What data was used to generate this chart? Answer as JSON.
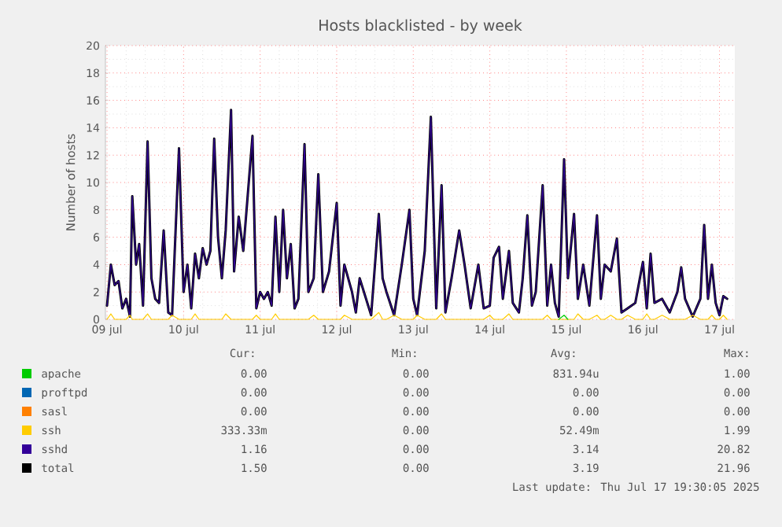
{
  "chart_data": {
    "type": "line",
    "title": "Hosts blacklisted - by week",
    "ylabel": "Number of hosts",
    "xlim": [
      "2025-07-08T23:30",
      "2025-07-17T04:48"
    ],
    "ylim": [
      0,
      20
    ],
    "xticks": [
      {
        "value": "2025-07-09",
        "label": "09 jul"
      },
      {
        "value": "2025-07-10",
        "label": "10 jul"
      },
      {
        "value": "2025-07-11",
        "label": "11 jul"
      },
      {
        "value": "2025-07-12",
        "label": "12 jul"
      },
      {
        "value": "2025-07-13",
        "label": "13 jul"
      },
      {
        "value": "2025-07-14",
        "label": "14 jul"
      },
      {
        "value": "2025-07-15",
        "label": "15 jul"
      },
      {
        "value": "2025-07-16",
        "label": "16 jul"
      },
      {
        "value": "2025-07-17",
        "label": "17 jul"
      }
    ],
    "yticks": [
      0,
      2,
      4,
      6,
      8,
      10,
      12,
      14,
      16,
      18,
      20
    ],
    "grid": true,
    "legend": "bottom",
    "marker": "none",
    "line_style": "solid",
    "x": [
      "2025-07-09T00:00",
      "2025-07-09T01:12",
      "2025-07-09T02:24",
      "2025-07-09T03:36",
      "2025-07-09T04:48",
      "2025-07-09T06:00",
      "2025-07-09T07:12",
      "2025-07-09T07:55",
      "2025-07-09T09:07",
      "2025-07-09T10:05",
      "2025-07-09T11:17",
      "2025-07-09T12:43",
      "2025-07-09T13:55",
      "2025-07-09T15:07",
      "2025-07-09T16:19",
      "2025-07-09T17:46",
      "2025-07-09T19:12",
      "2025-07-09T20:24",
      "2025-07-09T22:34",
      "2025-07-10T00:00",
      "2025-07-10T01:12",
      "2025-07-10T02:24",
      "2025-07-10T03:36",
      "2025-07-10T04:48",
      "2025-07-10T06:00",
      "2025-07-10T07:12",
      "2025-07-10T08:24",
      "2025-07-10T09:36",
      "2025-07-10T10:48",
      "2025-07-10T12:00",
      "2025-07-10T13:12",
      "2025-07-10T14:53",
      "2025-07-10T15:50",
      "2025-07-10T17:17",
      "2025-07-10T18:43",
      "2025-07-10T19:55",
      "2025-07-10T21:36",
      "2025-07-10T22:48",
      "2025-07-11T00:00",
      "2025-07-11T01:12",
      "2025-07-11T02:24",
      "2025-07-11T03:36",
      "2025-07-11T04:48",
      "2025-07-11T06:00",
      "2025-07-11T07:12",
      "2025-07-11T08:24",
      "2025-07-11T09:36",
      "2025-07-11T10:48",
      "2025-07-11T12:00",
      "2025-07-11T13:55",
      "2025-07-11T15:07",
      "2025-07-11T16:48",
      "2025-07-11T18:14",
      "2025-07-11T19:41",
      "2025-07-11T21:36",
      "2025-07-12T00:00",
      "2025-07-12T01:12",
      "2025-07-12T02:24",
      "2025-07-12T04:48",
      "2025-07-12T06:00",
      "2025-07-12T07:12",
      "2025-07-12T09:36",
      "2025-07-12T10:48",
      "2025-07-12T13:12",
      "2025-07-12T14:24",
      "2025-07-12T15:36",
      "2025-07-12T18:00",
      "2025-07-12T20:24",
      "2025-07-12T22:48",
      "2025-07-13T00:00",
      "2025-07-13T01:12",
      "2025-07-13T03:36",
      "2025-07-13T05:31",
      "2025-07-13T07:12",
      "2025-07-13T08:53",
      "2025-07-13T10:05",
      "2025-07-13T12:00",
      "2025-07-13T14:24",
      "2025-07-13T16:05",
      "2025-07-13T18:00",
      "2025-07-13T20:24",
      "2025-07-13T22:05",
      "2025-07-14T00:00",
      "2025-07-14T01:12",
      "2025-07-14T02:53",
      "2025-07-14T04:05",
      "2025-07-14T06:00",
      "2025-07-14T07:12",
      "2025-07-14T09:07",
      "2025-07-14T10:19",
      "2025-07-14T11:46",
      "2025-07-14T13:12",
      "2025-07-14T14:24",
      "2025-07-14T16:34",
      "2025-07-14T18:00",
      "2025-07-14T19:12",
      "2025-07-14T20:24",
      "2025-07-14T21:36",
      "2025-07-14T23:17",
      "2025-07-15T00:29",
      "2025-07-15T02:24",
      "2025-07-15T03:36",
      "2025-07-15T05:17",
      "2025-07-15T07:12",
      "2025-07-15T09:36",
      "2025-07-15T10:48",
      "2025-07-15T12:00",
      "2025-07-15T13:55",
      "2025-07-15T15:50",
      "2025-07-15T17:17",
      "2025-07-15T19:12",
      "2025-07-15T21:36",
      "2025-07-16T00:00",
      "2025-07-16T01:12",
      "2025-07-16T02:24",
      "2025-07-16T03:36",
      "2025-07-16T06:00",
      "2025-07-16T08:24",
      "2025-07-16T10:48",
      "2025-07-16T12:00",
      "2025-07-16T13:12",
      "2025-07-16T15:36",
      "2025-07-16T18:00",
      "2025-07-16T19:12",
      "2025-07-16T20:24",
      "2025-07-16T21:36",
      "2025-07-16T22:48",
      "2025-07-17T00:00",
      "2025-07-17T01:12",
      "2025-07-17T02:24"
    ],
    "series": [
      {
        "name": "apache",
        "color": "#00cc00",
        "x": [
          "2025-07-14T21:36",
          "2025-07-14T23:17",
          "2025-07-15T00:29"
        ],
        "values": [
          0,
          0.3,
          0
        ]
      },
      {
        "name": "proftpd",
        "color": "#0066b3",
        "values": [
          null,
          null,
          null,
          null,
          null,
          null,
          null,
          null,
          null,
          null,
          null,
          null,
          null,
          null,
          null,
          null,
          null,
          null,
          null,
          null,
          null,
          null,
          null,
          null,
          null,
          null,
          null,
          null,
          null,
          null,
          null,
          null,
          null,
          null,
          null,
          null,
          null,
          null,
          null,
          null,
          null,
          null,
          null,
          null,
          null,
          null,
          null,
          null,
          null,
          null,
          null,
          null,
          null,
          null,
          null,
          null,
          null,
          null,
          null,
          null,
          null,
          null,
          null,
          null,
          null,
          null,
          null,
          null,
          null,
          null,
          null,
          null,
          null,
          null,
          null,
          null,
          null,
          null,
          null,
          null,
          null,
          null,
          null,
          null,
          null,
          null,
          null,
          null,
          null,
          null,
          null,
          null,
          null,
          null,
          null,
          null,
          null,
          null,
          null,
          null,
          null,
          null,
          null,
          null,
          null,
          null,
          null,
          null,
          null,
          null,
          null,
          null,
          null,
          null,
          null,
          null,
          null,
          null,
          null,
          null,
          null,
          null,
          null,
          null,
          null,
          null,
          null,
          null,
          null,
          null
        ]
      },
      {
        "name": "sasl",
        "color": "#ff8000",
        "values": [
          null,
          null,
          null,
          null,
          null,
          null,
          null,
          null,
          null,
          null,
          null,
          null,
          null,
          null,
          null,
          null,
          null,
          null,
          null,
          null,
          null,
          null,
          null,
          null,
          null,
          null,
          null,
          null,
          null,
          null,
          null,
          null,
          null,
          null,
          null,
          null,
          null,
          null,
          null,
          null,
          null,
          null,
          null,
          null,
          null,
          null,
          null,
          null,
          null,
          null,
          null,
          null,
          null,
          null,
          null,
          null,
          null,
          null,
          null,
          null,
          null,
          null,
          null,
          null,
          null,
          null,
          null,
          null,
          null,
          null,
          null,
          null,
          null,
          null,
          null,
          null,
          null,
          null,
          null,
          null,
          null,
          null,
          null,
          null,
          null,
          null,
          null,
          null,
          null,
          null,
          null,
          null,
          null,
          null,
          null,
          null,
          null,
          null,
          null,
          null,
          null,
          null,
          null,
          null,
          null,
          null,
          null,
          null,
          null,
          null,
          null,
          null,
          null,
          null,
          null,
          null,
          null,
          null,
          null,
          null,
          null,
          null,
          null,
          null,
          null,
          null,
          null,
          null,
          null,
          null
        ]
      },
      {
        "name": "ssh",
        "color": "#ffcc00",
        "values": [
          0,
          0.4,
          0,
          0,
          0,
          0,
          0.3,
          0,
          0,
          0,
          0,
          0.4,
          0,
          0,
          0,
          0,
          0,
          0.3,
          0,
          0,
          0,
          0,
          0.4,
          0,
          0,
          0,
          0,
          0,
          0,
          0,
          0.4,
          0,
          0,
          0,
          0,
          0,
          0,
          0.3,
          0,
          0,
          0,
          0,
          0.4,
          0,
          0,
          0,
          0,
          0,
          0,
          0,
          0,
          0.3,
          0,
          0,
          0,
          0,
          0,
          0.3,
          0,
          0,
          0,
          0,
          0,
          0.5,
          0,
          0,
          0.3,
          0,
          0,
          0,
          0.3,
          0,
          0,
          0,
          0.4,
          0,
          0,
          0,
          0,
          0,
          0,
          0,
          0.3,
          0,
          0,
          0,
          0.4,
          0,
          0,
          0,
          0,
          0,
          0,
          0,
          0.3,
          0,
          0,
          0,
          0,
          0,
          0,
          0.4,
          0,
          0,
          0.3,
          0,
          0,
          0.3,
          0,
          0,
          0.3,
          0,
          0,
          0.4,
          0,
          0,
          0.3,
          0,
          0,
          0,
          0,
          0.3,
          0,
          0,
          0,
          0.3,
          0,
          0,
          0.3,
          0
        ]
      },
      {
        "name": "sshd",
        "color": "#330099",
        "values": [
          1,
          4,
          2.5,
          2.8,
          0.8,
          1.5,
          0.2,
          9,
          4,
          5.5,
          1,
          13,
          3,
          1.5,
          1.2,
          6.5,
          0.5,
          0.3,
          12.5,
          2,
          4,
          0.8,
          4.8,
          3,
          5.2,
          4,
          5,
          13.2,
          6,
          3,
          6.5,
          15.3,
          3.5,
          7.5,
          5,
          8.5,
          13.4,
          0.8,
          2,
          1.5,
          2,
          1,
          7.5,
          2,
          8,
          3,
          5.5,
          0.8,
          1.5,
          12.8,
          2,
          3,
          10.6,
          2,
          3.5,
          8.5,
          1,
          4,
          2,
          0.5,
          3,
          1.2,
          0.3,
          7.7,
          3,
          2,
          0.3,
          4,
          8,
          1.5,
          0.3,
          5,
          14.8,
          0.8,
          9.8,
          0.5,
          3,
          6.5,
          4,
          0.8,
          4,
          0.8,
          1,
          4.5,
          5.3,
          1.5,
          5,
          1.2,
          0.5,
          3,
          7.6,
          1,
          2,
          9.8,
          1,
          4,
          1.2,
          0.2,
          11.7,
          3,
          7.7,
          1.5,
          4,
          1,
          7.6,
          1.5,
          4,
          3.5,
          5.9,
          0.5,
          0.8,
          1.2,
          4.2,
          0.8,
          4.8,
          1.2,
          1.5,
          0.5,
          2,
          3.8,
          1.5,
          0.2,
          1.5,
          6.9,
          1.5,
          4,
          1.2,
          0.3,
          1.7,
          1.5
        ]
      },
      {
        "name": "total",
        "color": "#000000",
        "values": [
          1,
          4,
          2.5,
          2.8,
          0.8,
          1.5,
          0.2,
          9,
          4,
          5.5,
          1,
          13,
          3,
          1.5,
          1.2,
          6.5,
          0.5,
          0.3,
          12.5,
          2,
          4,
          0.8,
          4.8,
          3,
          5.2,
          4,
          5,
          13.2,
          6,
          3,
          6.5,
          15.3,
          3.5,
          7.5,
          5,
          8.5,
          13.4,
          0.8,
          2,
          1.5,
          2,
          1,
          7.5,
          2,
          8,
          3,
          5.5,
          0.8,
          1.5,
          12.8,
          2,
          3,
          10.6,
          2,
          3.5,
          8.5,
          1,
          4,
          2,
          0.5,
          3,
          1.2,
          0.3,
          7.7,
          3,
          2,
          0.3,
          4,
          8,
          1.5,
          0.3,
          5,
          14.8,
          0.8,
          9.8,
          0.5,
          3,
          6.5,
          4,
          0.8,
          4,
          0.8,
          1,
          4.5,
          5.3,
          1.5,
          5,
          1.2,
          0.5,
          3,
          7.6,
          1,
          2,
          9.8,
          1,
          4,
          1.2,
          0.2,
          11.7,
          3,
          7.7,
          1.5,
          4,
          1,
          7.6,
          1.5,
          4,
          3.5,
          5.9,
          0.5,
          0.8,
          1.2,
          4.2,
          0.8,
          4.8,
          1.2,
          1.5,
          0.5,
          2,
          3.8,
          1.5,
          0.2,
          1.5,
          6.9,
          1.5,
          4,
          1.2,
          0.3,
          1.7,
          1.5
        ]
      }
    ],
    "annotations": [
      "Cur:",
      "Min:",
      "Avg:",
      "Max:",
      "0.00",
      "0.00",
      "831.94u",
      "1.00",
      "0.00",
      "0.00",
      "0.00",
      "0.00",
      "0.00",
      "0.00",
      "0.00",
      "0.00",
      "333.33m",
      "0.00",
      "52.49m",
      "1.99",
      "1.16",
      "0.00",
      "3.14",
      "20.82",
      "1.50",
      "0.00",
      "3.19",
      "21.96",
      "Last update: Thu Jul 17 19:30:05 2025"
    ]
  }
}
